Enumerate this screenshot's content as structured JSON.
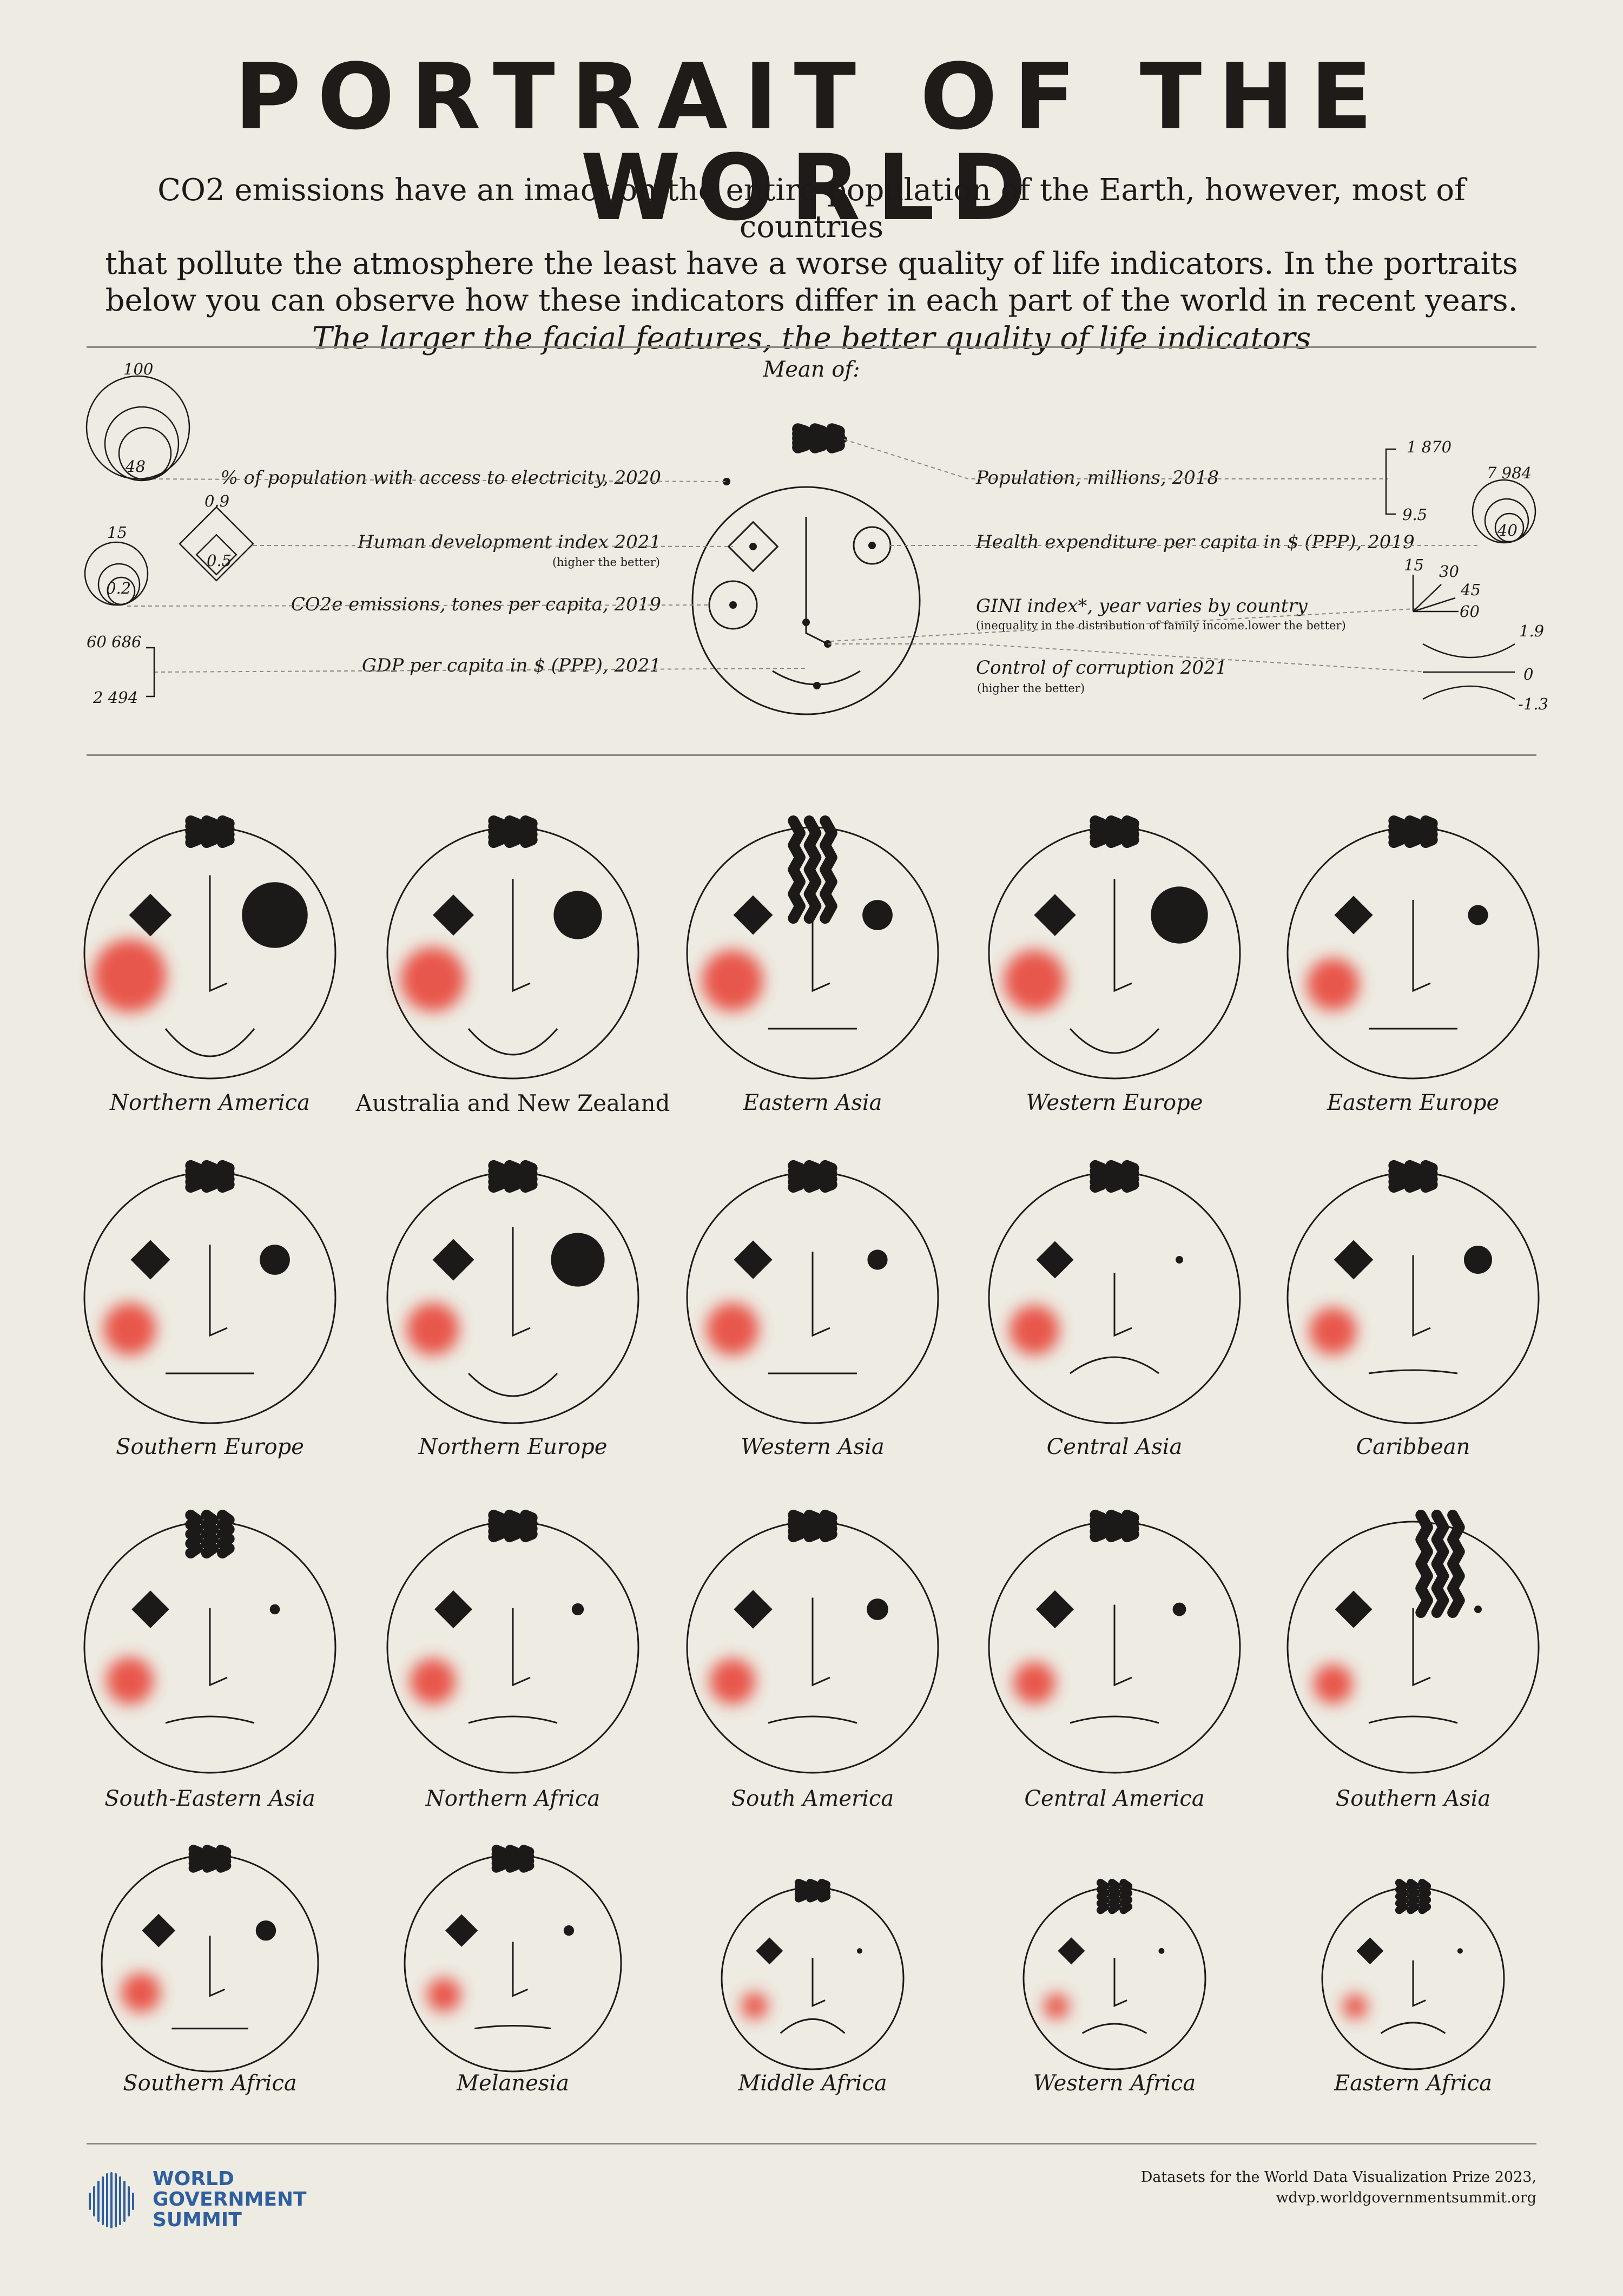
{
  "title": "PORTRAIT OF THE WORLD",
  "intro": {
    "lines": [
      "CO2 emissions have an imact on the entire population of the Earth, however, most of countries",
      "that pollute the atmosphere the least have a worse quality of life indicators. In the portraits",
      "below you can observe how these indicators differ in each part of the world in recent years."
    ],
    "emphasis": "The larger the facial features, the better quality of life indicators"
  },
  "legend": {
    "heading": "Mean of:",
    "left": [
      {
        "label": "% of population with access to electricity, 2020",
        "note": ""
      },
      {
        "label": "Human development index 2021",
        "note": "(higher the better)"
      },
      {
        "label": "CO2e emissions, tones per capita, 2019",
        "note": ""
      },
      {
        "label": "GDP per capita in $ (PPP), 2021",
        "note": ""
      }
    ],
    "right": [
      {
        "label": "Population, millions, 2018",
        "note": ""
      },
      {
        "label": "Health expenditure per capita in $ (PPP), 2019",
        "note": ""
      },
      {
        "label": "GINI index*, year varies by country",
        "note": "(inequality in the distribution of family income.lower the better)"
      },
      {
        "label": "Control of corruption 2021",
        "note": "(higher the better)"
      }
    ],
    "scales": {
      "electricity": [
        "100",
        "48"
      ],
      "hdi": [
        "0.9",
        "0.5"
      ],
      "co2": [
        "15",
        "0.2"
      ],
      "gdp": [
        "60 686",
        "2 494"
      ],
      "population": [
        "1 870",
        "9.5"
      ],
      "health": [
        "7 984",
        "40"
      ],
      "gini": [
        "15",
        "30",
        "45",
        "60"
      ],
      "corruption": [
        "1.9",
        "0",
        "-1.3"
      ]
    }
  },
  "faces": [
    {
      "name": "Northern America",
      "hair": 3,
      "eye": 0.98,
      "cheek": 0.95,
      "nose": 0.95,
      "mouth": 0.85
    },
    {
      "name": "Australia and New Zealand",
      "hair": 3,
      "eye": 0.72,
      "cheek": 0.78,
      "nose": 0.9,
      "mouth": 0.8
    },
    {
      "name": "Eastern Asia",
      "hair": 3,
      "eye": 0.45,
      "cheek": 0.72,
      "nose": 0.55,
      "mouth": 0.0
    },
    {
      "name": "Western Europe",
      "hair": 3,
      "eye": 0.85,
      "cheek": 0.72,
      "nose": 0.9,
      "mouth": 0.75
    },
    {
      "name": "Eastern Europe",
      "hair": 3,
      "eye": 0.3,
      "cheek": 0.55,
      "nose": 0.6,
      "mouth": 0.0
    },
    {
      "name": "Southern Europe",
      "hair": 3,
      "eye": 0.45,
      "cheek": 0.55,
      "nose": 0.6,
      "mouth": 0.0
    },
    {
      "name": "Northern Europe",
      "hair": 3,
      "eye": 0.8,
      "cheek": 0.55,
      "nose": 0.85,
      "mouth": 0.7
    },
    {
      "name": "Western Asia",
      "hair": 3,
      "eye": 0.3,
      "cheek": 0.55,
      "nose": 0.5,
      "mouth": 0.0
    },
    {
      "name": "Central Asia",
      "hair": 3,
      "eye": 0.1,
      "cheek": 0.5,
      "nose": 0.2,
      "mouth": -0.5
    },
    {
      "name": "Caribbean",
      "hair": 3,
      "eye": 0.42,
      "cheek": 0.45,
      "nose": 0.45,
      "mouth": -0.1
    },
    {
      "name": "South-Eastern Asia",
      "hair": 3,
      "eye": 0.15,
      "cheek": 0.45,
      "nose": 0.4,
      "mouth": -0.2
    },
    {
      "name": "Northern Africa",
      "hair": 3,
      "eye": 0.18,
      "cheek": 0.42,
      "nose": 0.4,
      "mouth": -0.2
    },
    {
      "name": "South America",
      "hair": 3,
      "eye": 0.32,
      "cheek": 0.42,
      "nose": 0.55,
      "mouth": -0.2
    },
    {
      "name": "Central America",
      "hair": 3,
      "eye": 0.2,
      "cheek": 0.35,
      "nose": 0.45,
      "mouth": -0.2
    },
    {
      "name": "Southern Asia",
      "hair": 3,
      "eye": 0.1,
      "cheek": 0.3,
      "nose": 0.4,
      "mouth": -0.2
    },
    {
      "name": "Southern Africa",
      "hair": 3,
      "eye": 0.35,
      "cheek": 0.42,
      "nose": 0.3,
      "mouth": 0.0
    },
    {
      "name": "Melanesia",
      "hair": 3,
      "eye": 0.18,
      "cheek": 0.3,
      "nose": 0.2,
      "mouth": -0.1
    },
    {
      "name": "Middle Africa",
      "hair": 3,
      "eye": 0.1,
      "cheek": 0.25,
      "nose": 0.25,
      "mouth": -0.6
    },
    {
      "name": "Western Africa",
      "hair": 3,
      "eye": 0.12,
      "cheek": 0.22,
      "nose": 0.25,
      "mouth": -0.4
    },
    {
      "name": "Eastern Africa",
      "hair": 3,
      "eye": 0.08,
      "cheek": 0.2,
      "nose": 0.2,
      "mouth": -0.45
    }
  ],
  "footer": {
    "logo": [
      "WORLD",
      "GOVERNMENT",
      "SUMMIT"
    ],
    "source_lines": [
      "Datasets for the World Data Visualization Prize 2023,",
      "wdvp.worldgovernmentsummit.org"
    ]
  },
  "colors": {
    "ink": "#1c1a19",
    "cheek": "#e8463a",
    "background": "#edebe2",
    "logo": "#2f5f9e"
  }
}
